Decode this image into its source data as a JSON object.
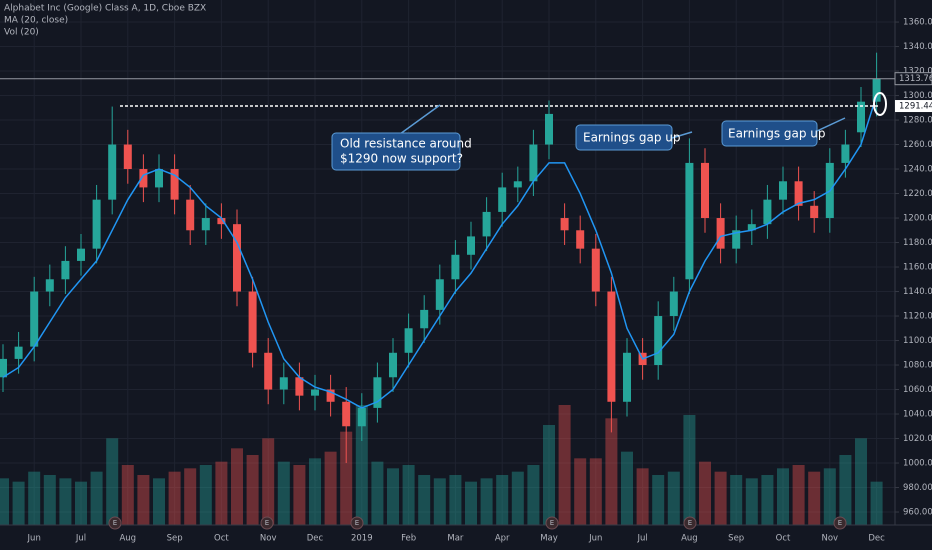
{
  "chart_data": {
    "type": "candlestick",
    "title": "Alphabet Inc (Google) Class A, 1D, Cboe BZX",
    "indicator_labels": [
      "MA (20, close)",
      "Vol (20)"
    ],
    "categories": [
      null,
      null,
      "Jun",
      null,
      null,
      "Jul",
      null,
      null,
      "Aug",
      null,
      null,
      "Sep",
      null,
      null,
      "Oct",
      null,
      null,
      "Nov",
      null,
      null,
      "Dec",
      null,
      null,
      "2019",
      null,
      null,
      "Feb",
      null,
      null,
      "Mar",
      null,
      null,
      "Apr",
      null,
      null,
      "May",
      null,
      null,
      "Jun",
      null,
      null,
      "Jul",
      null,
      null,
      "Aug",
      null,
      null,
      "Sep",
      null,
      null,
      "Oct",
      null,
      null,
      "Nov",
      null,
      null,
      "Dec"
    ],
    "open": [
      1070,
      1085,
      1095,
      1140,
      1150,
      1165,
      1175,
      1215,
      1260,
      1240,
      1225,
      1240,
      1215,
      1190,
      1200,
      1195,
      1140,
      1090,
      1060,
      1070,
      1055,
      1060,
      1050,
      1030,
      1045,
      1070,
      1090,
      1110,
      1125,
      1150,
      1170,
      1185,
      1205,
      1225,
      1230,
      1260,
      1200,
      1190,
      1175,
      1140,
      1050,
      1090,
      1080,
      1120,
      1150,
      1245,
      1200,
      1175,
      1190,
      1195,
      1215,
      1230,
      1210,
      1200,
      1245,
      1270,
      1295
    ],
    "high": [
      1097,
      1107,
      1152,
      1162,
      1177,
      1187,
      1227,
      1291,
      1272,
      1252,
      1252,
      1252,
      1227,
      1212,
      1212,
      1207,
      1152,
      1102,
      1082,
      1082,
      1072,
      1072,
      1062,
      1057,
      1082,
      1102,
      1122,
      1137,
      1162,
      1182,
      1197,
      1217,
      1237,
      1242,
      1272,
      1296,
      1212,
      1202,
      1187,
      1152,
      1102,
      1102,
      1132,
      1152,
      1265,
      1257,
      1212,
      1202,
      1207,
      1227,
      1242,
      1242,
      1222,
      1257,
      1272,
      1307,
      1335
    ],
    "low": [
      1058,
      1073,
      1083,
      1128,
      1138,
      1153,
      1163,
      1203,
      1228,
      1213,
      1213,
      1203,
      1178,
      1178,
      1183,
      1128,
      1078,
      1048,
      1048,
      1043,
      1043,
      1038,
      1000,
      1018,
      1033,
      1058,
      1078,
      1098,
      1113,
      1138,
      1158,
      1173,
      1193,
      1213,
      1218,
      1248,
      1178,
      1163,
      1128,
      1025,
      1038,
      1068,
      1068,
      1108,
      1138,
      1188,
      1163,
      1163,
      1178,
      1183,
      1203,
      1198,
      1188,
      1188,
      1233,
      1258,
      1283
    ],
    "close": [
      1085,
      1095,
      1140,
      1150,
      1165,
      1175,
      1215,
      1260,
      1240,
      1225,
      1240,
      1215,
      1190,
      1200,
      1195,
      1140,
      1090,
      1060,
      1070,
      1055,
      1060,
      1050,
      1030,
      1045,
      1070,
      1090,
      1110,
      1125,
      1150,
      1170,
      1185,
      1205,
      1225,
      1230,
      1260,
      1285,
      1190,
      1175,
      1140,
      1050,
      1090,
      1080,
      1120,
      1140,
      1245,
      1200,
      1175,
      1190,
      1195,
      1215,
      1230,
      1210,
      1200,
      1245,
      1260,
      1295,
      1313.76
    ],
    "ma": [
      1070,
      1078,
      1095,
      1115,
      1135,
      1150,
      1165,
      1190,
      1215,
      1235,
      1240,
      1235,
      1225,
      1210,
      1200,
      1180,
      1150,
      1115,
      1085,
      1070,
      1062,
      1058,
      1052,
      1045,
      1050,
      1060,
      1080,
      1100,
      1120,
      1140,
      1155,
      1175,
      1195,
      1210,
      1230,
      1245,
      1245,
      1220,
      1190,
      1155,
      1110,
      1085,
      1090,
      1105,
      1140,
      1165,
      1185,
      1188,
      1190,
      1195,
      1205,
      1212,
      1215,
      1222,
      1240,
      1260,
      1300
    ],
    "volume": [
      1.4,
      1.3,
      1.6,
      1.5,
      1.4,
      1.3,
      1.6,
      2.6,
      1.8,
      1.5,
      1.4,
      1.6,
      1.7,
      1.8,
      1.9,
      2.3,
      2.1,
      2.6,
      1.9,
      1.8,
      2.0,
      2.2,
      2.8,
      3.6,
      1.9,
      1.7,
      1.8,
      1.5,
      1.4,
      1.5,
      1.3,
      1.4,
      1.5,
      1.6,
      1.8,
      3.0,
      3.6,
      2.0,
      2.0,
      3.2,
      2.2,
      1.7,
      1.5,
      1.6,
      3.3,
      1.9,
      1.6,
      1.5,
      1.4,
      1.5,
      1.7,
      1.8,
      1.6,
      1.7,
      2.1,
      2.6,
      1.3
    ],
    "up_color": "#26a69a",
    "down_color": "#ef5350",
    "ma_color": "#2196f3",
    "ylim": [
      949.4,
      1378
    ],
    "yticks": [
      {
        "value": 960,
        "label": "960.00"
      },
      {
        "value": 980,
        "label": "980.00"
      },
      {
        "value": 1000,
        "label": "1000.00"
      },
      {
        "value": 1020,
        "label": "1020.00"
      },
      {
        "value": 1040,
        "label": "1040.00"
      },
      {
        "value": 1060,
        "label": "1060.00"
      },
      {
        "value": 1080,
        "label": "1080.00"
      },
      {
        "value": 1100,
        "label": "1100.00"
      },
      {
        "value": 1120,
        "label": "1120.00"
      },
      {
        "value": 1140,
        "label": "1140.00"
      },
      {
        "value": 1160,
        "label": "1160.00"
      },
      {
        "value": 1180,
        "label": "1180.00"
      },
      {
        "value": 1200,
        "label": "1200.00"
      },
      {
        "value": 1220,
        "label": "1220.00"
      },
      {
        "value": 1240,
        "label": "1240.00"
      },
      {
        "value": 1260,
        "label": "1260.00"
      },
      {
        "value": 1280,
        "label": "1280.00"
      },
      {
        "value": 1300,
        "label": "1300.00"
      },
      {
        "value": 1320,
        "label": "1320.00"
      },
      {
        "value": 1340,
        "label": "1340.00"
      },
      {
        "value": 1360,
        "label": "1360.00"
      }
    ],
    "grid": true,
    "last_price": 1313.76,
    "support_level": 1291.44,
    "annotations": [
      "Old resistance around",
      "$1290 now support?",
      "Earnings gap up",
      "Earnings gap up"
    ],
    "earnings_events": [
      "E",
      "E",
      "E",
      "E",
      "E",
      "E"
    ]
  }
}
